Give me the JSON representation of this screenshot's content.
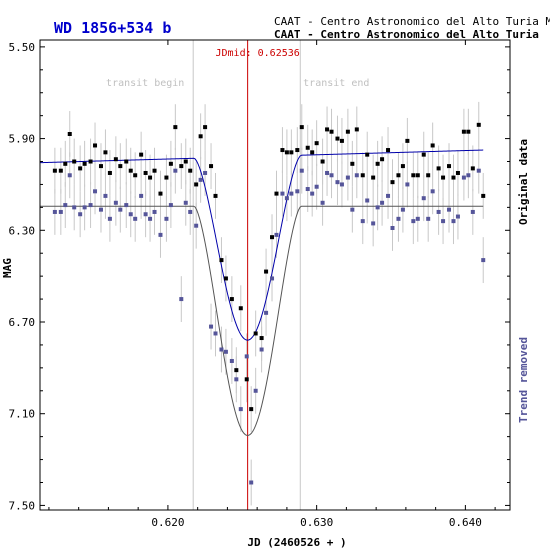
{
  "chart_data": {
    "type": "scatter",
    "title": "WD 1856+534 b",
    "observatory_line1": "CAAT - Centro Astronomico del Alto Turia MPC-J",
    "observatory_line2": "CAAT - Centro Astronomico del Alto Turia",
    "xlabel": "JD (2460526 + )",
    "ylabel": "MAG",
    "right_label_top": "Original data",
    "right_label_bottom": "Trend removed",
    "xlim": [
      0.6114,
      0.643
    ],
    "ylim": [
      5.47,
      7.52
    ],
    "y_inverted": true,
    "x_ticks": [
      {
        "value": 0.62,
        "label": "0.620"
      },
      {
        "value": 0.63,
        "label": "0.630"
      },
      {
        "value": 0.64,
        "label": "0.640"
      }
    ],
    "y_ticks": [
      {
        "value": 5.5,
        "label": "5.50"
      },
      {
        "value": 5.9,
        "label": "5.90"
      },
      {
        "value": 6.3,
        "label": "6.30"
      },
      {
        "value": 6.7,
        "label": "6.70"
      },
      {
        "value": 7.1,
        "label": "7.10"
      },
      {
        "value": 7.5,
        "label": "7.50"
      }
    ],
    "annotations": {
      "jdmid_label": "JDmid: 0.62536",
      "jdmid": 0.62536,
      "transit_begin_label": "transit begin",
      "transit_begin": 0.6217,
      "transit_end_label": "transit end",
      "transit_end": 0.6289
    },
    "series": [
      {
        "name": "Original data",
        "style": "points",
        "color": "#000000",
        "x": [
          0.6124,
          0.6128,
          0.6131,
          0.6134,
          0.6137,
          0.6141,
          0.6144,
          0.6148,
          0.6151,
          0.6155,
          0.6158,
          0.6161,
          0.6165,
          0.6168,
          0.6172,
          0.6175,
          0.6178,
          0.6182,
          0.6185,
          0.6188,
          0.6191,
          0.6195,
          0.6199,
          0.6202,
          0.6205,
          0.6209,
          0.6212,
          0.6215,
          0.6219,
          0.6222,
          0.6225,
          0.6229,
          0.6232,
          0.6236,
          0.6239,
          0.6243,
          0.6246,
          0.6249,
          0.6253,
          0.6256,
          0.6259,
          0.6263,
          0.6266,
          0.627,
          0.6273,
          0.6277,
          0.628,
          0.6283,
          0.6287,
          0.629,
          0.6294,
          0.6297,
          0.63,
          0.6304,
          0.6307,
          0.631,
          0.6314,
          0.6317,
          0.6321,
          0.6324,
          0.6327,
          0.6331,
          0.6334,
          0.6338,
          0.6341,
          0.6344,
          0.6348,
          0.6351,
          0.6355,
          0.6358,
          0.6361,
          0.6365,
          0.6368,
          0.6372,
          0.6375,
          0.6378,
          0.6382,
          0.6385,
          0.6389,
          0.6392,
          0.6395,
          0.6399,
          0.6402,
          0.6405,
          0.6409,
          0.6412
        ],
        "y": [
          6.04,
          6.04,
          6.01,
          5.88,
          6.0,
          6.03,
          6.01,
          6.0,
          5.93,
          6.02,
          5.96,
          6.05,
          5.99,
          6.02,
          6.0,
          6.04,
          6.06,
          5.97,
          6.05,
          6.07,
          6.04,
          6.14,
          6.07,
          6.01,
          5.85,
          6.02,
          6.0,
          6.04,
          6.1,
          5.89,
          5.85,
          6.02,
          6.15,
          6.43,
          6.51,
          6.6,
          6.91,
          6.64,
          6.95,
          7.08,
          6.75,
          6.77,
          6.48,
          6.33,
          6.14,
          5.95,
          5.96,
          5.96,
          5.95,
          5.85,
          5.94,
          5.96,
          5.92,
          6.0,
          5.86,
          5.87,
          5.9,
          5.91,
          5.87,
          6.01,
          5.86,
          6.06,
          5.97,
          6.07,
          6.01,
          5.99,
          5.95,
          6.09,
          6.06,
          6.02,
          5.91,
          6.06,
          6.06,
          5.97,
          6.06,
          5.93,
          6.03,
          6.07,
          6.02,
          6.07,
          6.05,
          5.87,
          5.87,
          6.03,
          5.84,
          6.15
        ]
      },
      {
        "name": "Trend removed",
        "style": "points",
        "color": "#555599",
        "x": [
          0.6124,
          0.6128,
          0.6131,
          0.6134,
          0.6137,
          0.6141,
          0.6144,
          0.6148,
          0.6151,
          0.6155,
          0.6158,
          0.6161,
          0.6165,
          0.6168,
          0.6172,
          0.6175,
          0.6178,
          0.6182,
          0.6185,
          0.6188,
          0.6191,
          0.6195,
          0.6199,
          0.6202,
          0.6205,
          0.6209,
          0.6212,
          0.6215,
          0.6219,
          0.6222,
          0.6225,
          0.6229,
          0.6232,
          0.6236,
          0.6239,
          0.6243,
          0.6246,
          0.6249,
          0.6253,
          0.6256,
          0.6259,
          0.6263,
          0.6266,
          0.627,
          0.6273,
          0.6277,
          0.628,
          0.6283,
          0.6287,
          0.629,
          0.6294,
          0.6297,
          0.63,
          0.6304,
          0.6307,
          0.631,
          0.6314,
          0.6317,
          0.6321,
          0.6324,
          0.6327,
          0.6331,
          0.6334,
          0.6338,
          0.6341,
          0.6344,
          0.6348,
          0.6351,
          0.6355,
          0.6358,
          0.6361,
          0.6365,
          0.6368,
          0.6372,
          0.6375,
          0.6378,
          0.6382,
          0.6385,
          0.6389,
          0.6392,
          0.6395,
          0.6399,
          0.6402,
          0.6405,
          0.6409,
          0.6412
        ],
        "y": [
          6.22,
          6.22,
          6.19,
          6.06,
          6.2,
          6.23,
          6.2,
          6.19,
          6.13,
          6.21,
          6.15,
          6.25,
          6.18,
          6.21,
          6.19,
          6.23,
          6.25,
          6.15,
          6.23,
          6.25,
          6.22,
          6.32,
          6.25,
          6.19,
          6.04,
          6.6,
          6.18,
          6.22,
          6.28,
          6.08,
          6.05,
          6.72,
          6.75,
          6.82,
          6.83,
          6.87,
          6.95,
          7.08,
          6.85,
          7.4,
          7.0,
          6.82,
          6.66,
          6.51,
          6.32,
          6.14,
          6.16,
          6.14,
          6.13,
          6.04,
          6.12,
          6.14,
          6.11,
          6.18,
          6.05,
          6.06,
          6.09,
          6.1,
          6.07,
          6.21,
          6.06,
          6.26,
          6.17,
          6.27,
          6.2,
          6.18,
          6.15,
          6.29,
          6.25,
          6.21,
          6.1,
          6.26,
          6.25,
          6.16,
          6.25,
          6.13,
          6.22,
          6.26,
          6.21,
          6.26,
          6.24,
          6.07,
          6.06,
          6.22,
          6.04,
          6.43
        ]
      },
      {
        "name": "Original model",
        "style": "line",
        "color": "#0000aa",
        "baseline_start": 6.005,
        "baseline_end": 5.95,
        "depth": 0.8,
        "x_start": 0.6114,
        "x_end": 0.6412
      },
      {
        "name": "Detrended model",
        "style": "line",
        "color": "#555555",
        "baseline_start": 6.195,
        "baseline_end": 6.195,
        "depth": 1.0,
        "x_start": 0.6114,
        "x_end": 0.6412
      }
    ],
    "error_bar_color": "#c8c8c8",
    "error_bar_halfwidth": 0.1,
    "grid": false
  },
  "colors": {
    "title": "#0000cc",
    "jdmid": "#cc0000",
    "transit_labels": "#c0c0c0",
    "right_label_bottom": "#555599",
    "axis": "#000000"
  }
}
